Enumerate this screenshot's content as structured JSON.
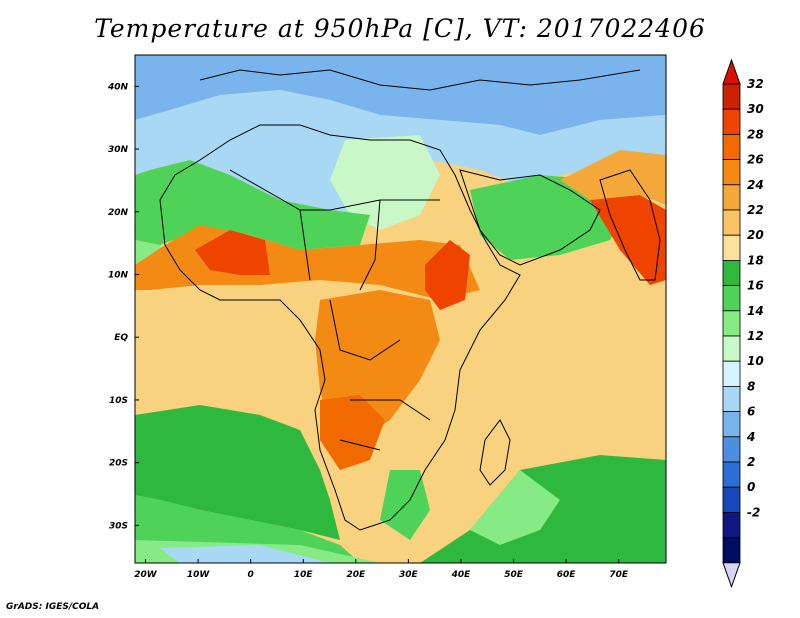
{
  "title": "Temperature at 950hPa [C], VT: 2017022406",
  "credit": "GrADS: IGES/COLA",
  "map": {
    "lat_labels": [
      "40N",
      "30N",
      "20N",
      "10N",
      "EQ",
      "10S",
      "20S",
      "30S"
    ],
    "lat_values": [
      40,
      30,
      20,
      10,
      0,
      -10,
      -20,
      -30
    ],
    "lon_labels": [
      "20W",
      "10W",
      "0",
      "10E",
      "20E",
      "30E",
      "40E",
      "50E",
      "60E",
      "70E"
    ],
    "lon_values": [
      -20,
      -10,
      0,
      10,
      20,
      30,
      40,
      50,
      60,
      70
    ],
    "lon_range": [
      -22,
      79
    ],
    "lat_range": [
      -36,
      45
    ]
  },
  "colorbar": {
    "labels": [
      "32",
      "30",
      "28",
      "26",
      "24",
      "22",
      "20",
      "18",
      "16",
      "14",
      "12",
      "10",
      "8",
      "6",
      "4",
      "2",
      "0",
      "-2"
    ],
    "colors": [
      "#cc2200",
      "#ee4400",
      "#f06a00",
      "#f28a14",
      "#f5a83a",
      "#f8c466",
      "#fbe29a",
      "#2eb83e",
      "#4ed358",
      "#86eb84",
      "#c8f8c8",
      "#d6f4fb",
      "#a8d8f4",
      "#7ab4ec",
      "#4e8ee0",
      "#2c6ed4",
      "#1646b8",
      "#101880",
      "#000c60"
    ],
    "over_color": "#dd1100",
    "under_color": "#d8d4f8"
  }
}
